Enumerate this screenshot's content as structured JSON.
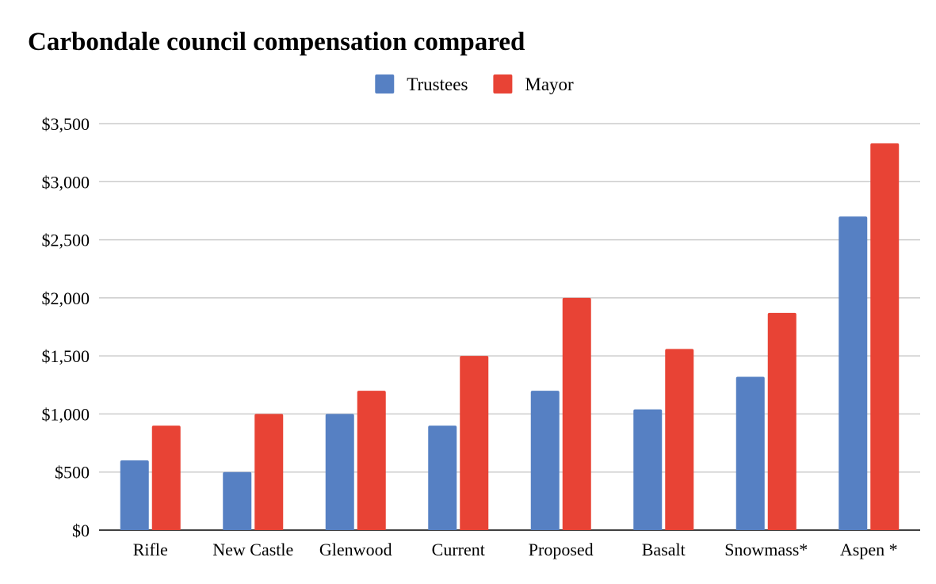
{
  "chart_data": {
    "type": "bar",
    "title": "Carbondale council compensation compared",
    "xlabel": "",
    "ylabel": "",
    "categories": [
      "Rifle",
      "New Castle",
      "Glenwood",
      "Current",
      "Proposed",
      "Basalt",
      "Snowmass*",
      "Aspen *"
    ],
    "series": [
      {
        "name": "Trustees",
        "color": "#5680c3",
        "values": [
          600,
          500,
          1000,
          900,
          1200,
          1040,
          1320,
          2700
        ]
      },
      {
        "name": "Mayor",
        "color": "#e84335",
        "values": [
          900,
          1000,
          1200,
          1500,
          2000,
          1560,
          1870,
          3330
        ]
      }
    ],
    "ylim": [
      0,
      3500
    ],
    "yticks": [
      0,
      500,
      1000,
      1500,
      2000,
      2500,
      3000,
      3500
    ],
    "ytick_labels": [
      "$0",
      "$500",
      "$1,000",
      "$1,500",
      "$2,000",
      "$2,500",
      "$3,000",
      "$3,500"
    ],
    "legend_position": "top-center",
    "grid": true
  }
}
